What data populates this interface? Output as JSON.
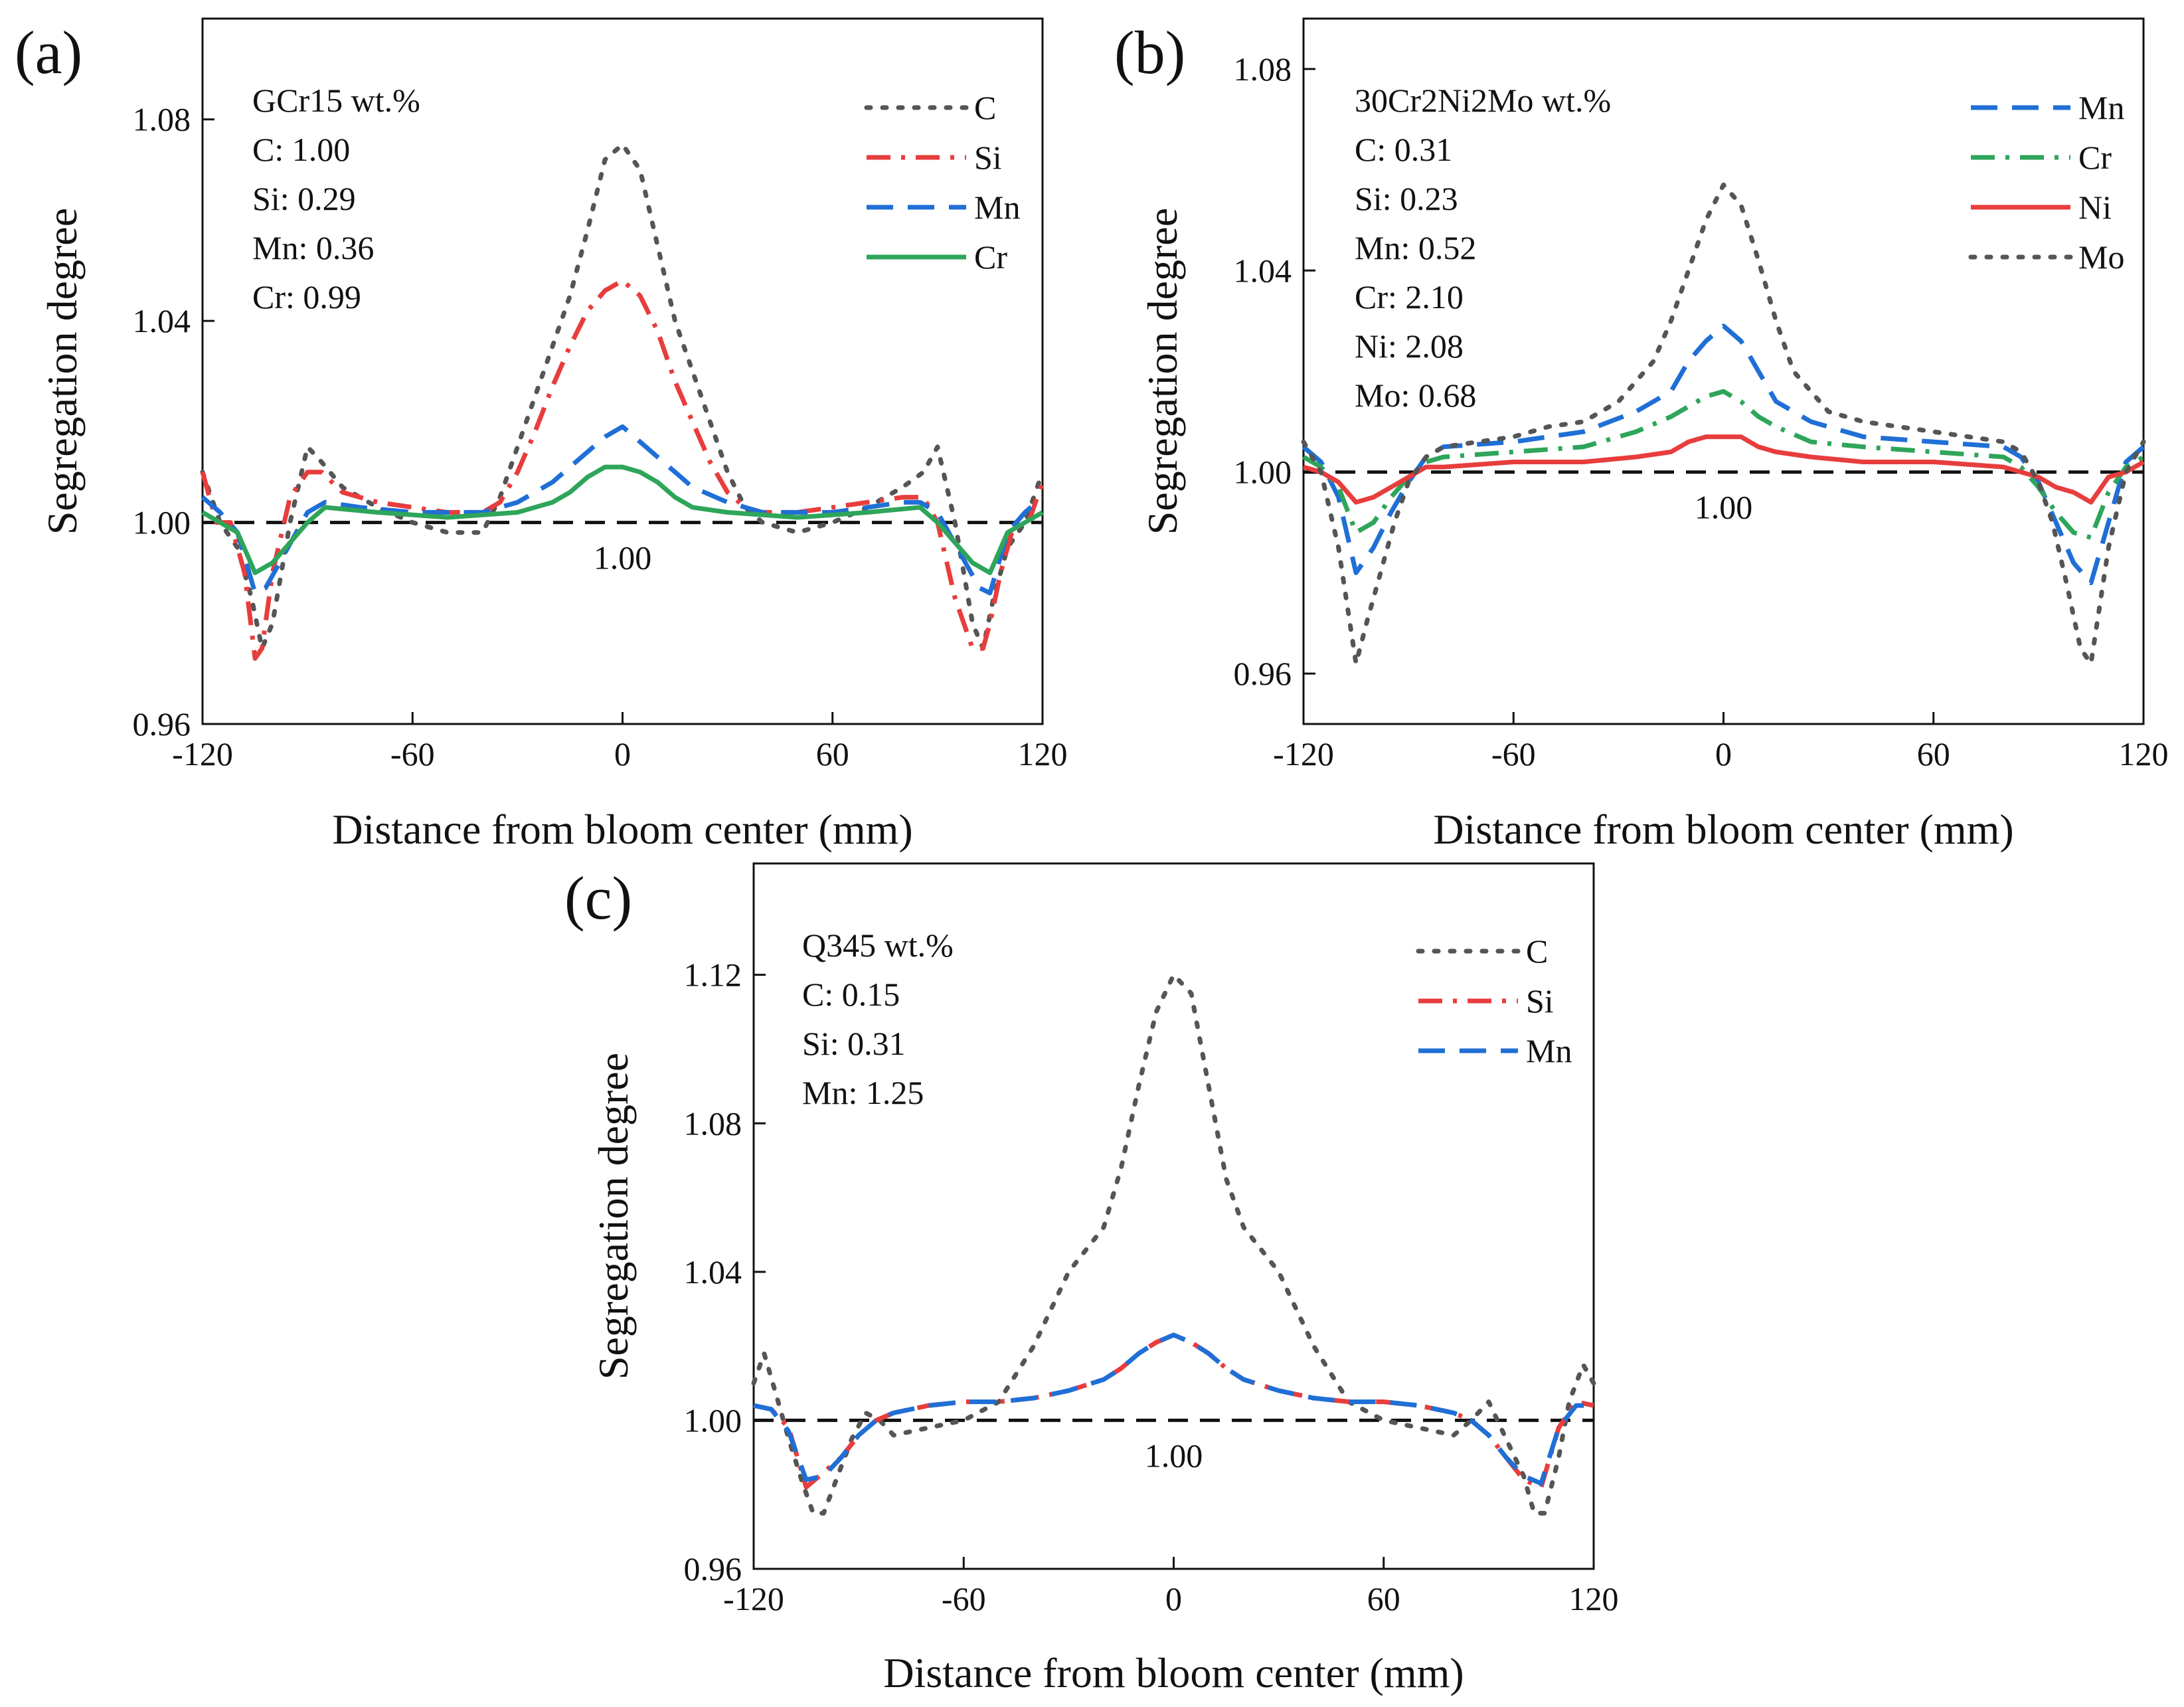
{
  "figure": {
    "panels": [
      "(a)",
      "(b)",
      "(c)"
    ]
  },
  "chart_data": [
    {
      "id": "a",
      "type": "line",
      "panel_label": "(a)",
      "xlabel": "Distance from bloom center (mm)",
      "ylabel": "Segregation degree",
      "xlim": [
        -120,
        120
      ],
      "ylim": [
        0.96,
        1.1
      ],
      "xticks": [
        "-120",
        "-60",
        "0",
        "60",
        "120"
      ],
      "yticks": [
        "0.96",
        "1.00",
        "1.04",
        "1.08"
      ],
      "ytick_values": [
        0.96,
        1.0,
        1.04,
        1.08
      ],
      "info_lines": [
        "GCr15 wt.%",
        "C: 1.00",
        "Si: 0.29",
        "Mn: 0.36",
        "Cr: 0.99"
      ],
      "reference": {
        "value": 1.0,
        "label": "1.00"
      },
      "legend_position": "top-right",
      "series": [
        {
          "name": "C",
          "color": "#555555",
          "style": "dot",
          "x": [
            -120,
            -115,
            -110,
            -106,
            -103,
            -100,
            -95,
            -90,
            -86,
            -80,
            -70,
            -60,
            -50,
            -40,
            -35,
            -30,
            -25,
            -20,
            -15,
            -10,
            -5,
            0,
            5,
            10,
            15,
            20,
            25,
            30,
            35,
            40,
            50,
            60,
            70,
            80,
            86,
            90,
            95,
            100,
            103,
            106,
            110,
            115,
            120
          ],
          "y": [
            1.01,
            1.0,
            0.995,
            0.985,
            0.975,
            0.98,
            1.0,
            1.015,
            1.012,
            1.007,
            1.003,
            1.0,
            0.998,
            0.998,
            1.005,
            1.015,
            1.025,
            1.035,
            1.045,
            1.058,
            1.072,
            1.075,
            1.07,
            1.055,
            1.04,
            1.03,
            1.02,
            1.01,
            1.003,
            1.0,
            0.998,
            1.0,
            1.003,
            1.007,
            1.01,
            1.015,
            1.0,
            0.98,
            0.975,
            0.985,
            0.995,
            1.0,
            1.01
          ]
        },
        {
          "name": "Si",
          "color": "#e83d3d",
          "style": "dashdot",
          "x": [
            -120,
            -116,
            -112,
            -108,
            -105,
            -103,
            -100,
            -95,
            -90,
            -86,
            -80,
            -70,
            -60,
            -50,
            -40,
            -35,
            -30,
            -25,
            -20,
            -15,
            -10,
            -5,
            0,
            5,
            10,
            15,
            20,
            25,
            30,
            35,
            40,
            50,
            60,
            70,
            80,
            86,
            90,
            95,
            100,
            103,
            105,
            108,
            112,
            116,
            120
          ],
          "y": [
            1.01,
            1.0,
            1.0,
            0.99,
            0.973,
            0.975,
            0.99,
            1.005,
            1.01,
            1.01,
            1.006,
            1.004,
            1.003,
            1.002,
            1.002,
            1.004,
            1.01,
            1.018,
            1.027,
            1.035,
            1.042,
            1.046,
            1.048,
            1.045,
            1.038,
            1.028,
            1.02,
            1.012,
            1.006,
            1.003,
            1.002,
            1.002,
            1.003,
            1.004,
            1.005,
            1.005,
            1.0,
            0.985,
            0.975,
            0.975,
            0.98,
            0.99,
            1.0,
            1.0,
            1.008
          ]
        },
        {
          "name": "Mn",
          "color": "#1f6fd6",
          "style": "dash",
          "x": [
            -120,
            -115,
            -110,
            -105,
            -102,
            -98,
            -94,
            -90,
            -85,
            -75,
            -60,
            -50,
            -40,
            -30,
            -20,
            -15,
            -10,
            -5,
            0,
            5,
            10,
            15,
            20,
            30,
            40,
            50,
            60,
            70,
            80,
            85,
            90,
            94,
            98,
            102,
            105,
            110,
            115,
            120
          ],
          "y": [
            1.005,
            1.002,
            0.998,
            0.986,
            0.987,
            0.992,
            0.997,
            1.002,
            1.004,
            1.003,
            1.002,
            1.002,
            1.002,
            1.004,
            1.008,
            1.011,
            1.014,
            1.017,
            1.019,
            1.016,
            1.013,
            1.01,
            1.007,
            1.004,
            1.002,
            1.002,
            1.002,
            1.003,
            1.004,
            1.004,
            1.002,
            0.997,
            0.992,
            0.987,
            0.986,
            0.998,
            1.002,
            1.005
          ]
        },
        {
          "name": "Cr",
          "color": "#2ea55a",
          "style": "solid",
          "x": [
            -120,
            -115,
            -110,
            -105,
            -100,
            -95,
            -90,
            -85,
            -70,
            -50,
            -30,
            -20,
            -15,
            -10,
            -5,
            0,
            5,
            10,
            15,
            20,
            30,
            50,
            70,
            85,
            90,
            95,
            100,
            105,
            110,
            115,
            120
          ],
          "y": [
            1.002,
            1.0,
            0.998,
            0.99,
            0.992,
            0.996,
            1.0,
            1.003,
            1.002,
            1.001,
            1.002,
            1.004,
            1.006,
            1.009,
            1.011,
            1.011,
            1.01,
            1.008,
            1.005,
            1.003,
            1.002,
            1.001,
            1.002,
            1.003,
            1.0,
            0.996,
            0.992,
            0.99,
            0.998,
            1.0,
            1.002
          ]
        }
      ]
    },
    {
      "id": "b",
      "type": "line",
      "panel_label": "(b)",
      "xlabel": "Distance from bloom center (mm)",
      "ylabel": "Segregation degree",
      "xlim": [
        -120,
        120
      ],
      "ylim": [
        0.95,
        1.09
      ],
      "xticks": [
        "-120",
        "-60",
        "0",
        "60",
        "120"
      ],
      "yticks": [
        "0.96",
        "1.00",
        "1.04",
        "1.08"
      ],
      "ytick_values": [
        0.96,
        1.0,
        1.04,
        1.08
      ],
      "info_lines": [
        "30Cr2Ni2Mo wt.%",
        "C: 0.31",
        "Si: 0.23",
        "Mn: 0.52",
        "Cr: 2.10",
        "Ni: 2.08",
        "Mo: 0.68"
      ],
      "reference": {
        "value": 1.0,
        "label": "1.00"
      },
      "legend_position": "top-right",
      "series": [
        {
          "name": "Mn",
          "color": "#1f6fd6",
          "style": "dash",
          "x": [
            -120,
            -115,
            -110,
            -105,
            -100,
            -95,
            -90,
            -85,
            -80,
            -60,
            -40,
            -25,
            -15,
            -10,
            -5,
            0,
            5,
            10,
            15,
            25,
            40,
            60,
            80,
            85,
            90,
            95,
            100,
            105,
            110,
            115,
            120
          ],
          "y": [
            1.005,
            1.002,
            0.995,
            0.98,
            0.985,
            0.992,
            0.998,
            1.003,
            1.005,
            1.006,
            1.008,
            1.012,
            1.016,
            1.022,
            1.026,
            1.029,
            1.026,
            1.02,
            1.014,
            1.01,
            1.007,
            1.006,
            1.005,
            1.003,
            0.998,
            0.99,
            0.982,
            0.978,
            0.99,
            1.002,
            1.005
          ]
        },
        {
          "name": "Cr",
          "color": "#2ea55a",
          "style": "dashdot",
          "x": [
            -120,
            -115,
            -110,
            -105,
            -100,
            -95,
            -90,
            -85,
            -80,
            -60,
            -40,
            -25,
            -15,
            -10,
            -5,
            0,
            5,
            10,
            15,
            25,
            40,
            60,
            80,
            85,
            90,
            95,
            100,
            105,
            110,
            115,
            120
          ],
          "y": [
            1.003,
            1.001,
            0.997,
            0.988,
            0.99,
            0.995,
            0.999,
            1.002,
            1.003,
            1.004,
            1.005,
            1.008,
            1.011,
            1.013,
            1.015,
            1.016,
            1.014,
            1.011,
            1.009,
            1.006,
            1.005,
            1.004,
            1.003,
            1.001,
            0.997,
            0.992,
            0.988,
            0.987,
            0.996,
            1.001,
            1.003
          ]
        },
        {
          "name": "Ni",
          "color": "#e83d3d",
          "style": "solid",
          "x": [
            -120,
            -115,
            -110,
            -105,
            -100,
            -95,
            -90,
            -85,
            -80,
            -60,
            -40,
            -25,
            -15,
            -10,
            -5,
            0,
            5,
            10,
            15,
            25,
            40,
            60,
            80,
            85,
            90,
            95,
            100,
            105,
            110,
            115,
            120
          ],
          "y": [
            1.001,
            1.0,
            0.998,
            0.994,
            0.995,
            0.997,
            0.999,
            1.001,
            1.001,
            1.002,
            1.002,
            1.003,
            1.004,
            1.006,
            1.007,
            1.007,
            1.007,
            1.005,
            1.004,
            1.003,
            1.002,
            1.002,
            1.001,
            1.0,
            0.999,
            0.997,
            0.996,
            0.994,
            0.999,
            1.0,
            1.002
          ]
        },
        {
          "name": "Mo",
          "color": "#555555",
          "style": "dot",
          "x": [
            -120,
            -115,
            -110,
            -105,
            -102,
            -98,
            -94,
            -90,
            -85,
            -80,
            -70,
            -60,
            -50,
            -40,
            -30,
            -20,
            -15,
            -10,
            -5,
            0,
            5,
            10,
            15,
            20,
            30,
            40,
            50,
            60,
            70,
            80,
            85,
            90,
            94,
            98,
            102,
            105,
            110,
            115,
            120
          ],
          "y": [
            1.006,
            1.0,
            0.985,
            0.962,
            0.97,
            0.98,
            0.99,
            0.998,
            1.003,
            1.005,
            1.006,
            1.007,
            1.009,
            1.01,
            1.014,
            1.022,
            1.03,
            1.04,
            1.05,
            1.057,
            1.053,
            1.042,
            1.03,
            1.02,
            1.012,
            1.01,
            1.009,
            1.008,
            1.007,
            1.006,
            1.004,
            0.998,
            0.99,
            0.978,
            0.965,
            0.962,
            0.985,
            1.0,
            1.006
          ]
        }
      ]
    },
    {
      "id": "c",
      "type": "line",
      "panel_label": "(c)",
      "xlabel": "Distance from bloom center (mm)",
      "ylabel": "Segregation degree",
      "xlim": [
        -120,
        120
      ],
      "ylim": [
        0.96,
        1.15
      ],
      "xticks": [
        "-120",
        "-60",
        "0",
        "60",
        "120"
      ],
      "yticks": [
        "0.96",
        "1.00",
        "1.04",
        "1.08",
        "1.12"
      ],
      "ytick_values": [
        0.96,
        1.0,
        1.04,
        1.08,
        1.12
      ],
      "info_lines": [
        "Q345 wt.%",
        "C: 0.15",
        "Si: 0.31",
        "Mn: 1.25"
      ],
      "reference": {
        "value": 1.0,
        "label": "1.00"
      },
      "legend_position": "top-right",
      "series": [
        {
          "name": "C",
          "color": "#555555",
          "style": "dot",
          "x": [
            -120,
            -117,
            -113,
            -110,
            -106,
            -103,
            -100,
            -96,
            -92,
            -88,
            -84,
            -80,
            -70,
            -60,
            -50,
            -40,
            -30,
            -20,
            -15,
            -10,
            -5,
            0,
            5,
            10,
            15,
            20,
            30,
            40,
            50,
            60,
            70,
            80,
            85,
            90,
            95,
            100,
            103,
            106,
            110,
            113,
            117,
            120
          ],
          "y": [
            1.01,
            1.018,
            1.005,
            0.995,
            0.983,
            0.975,
            0.975,
            0.985,
            0.995,
            1.002,
            1.0,
            0.996,
            0.998,
            1.0,
            1.005,
            1.02,
            1.04,
            1.052,
            1.068,
            1.09,
            1.11,
            1.12,
            1.115,
            1.09,
            1.065,
            1.052,
            1.04,
            1.02,
            1.005,
            1.0,
            0.998,
            0.996,
            1.0,
            1.005,
            0.995,
            0.985,
            0.975,
            0.975,
            0.99,
            1.005,
            1.015,
            1.01
          ]
        },
        {
          "name": "Si",
          "color": "#e83d3d",
          "style": "dashdot",
          "x": [
            -120,
            -115,
            -110,
            -105,
            -100,
            -95,
            -90,
            -85,
            -80,
            -70,
            -60,
            -50,
            -40,
            -30,
            -20,
            -15,
            -10,
            -5,
            0,
            5,
            10,
            15,
            20,
            30,
            40,
            50,
            60,
            70,
            80,
            85,
            90,
            95,
            100,
            105,
            110,
            115,
            120
          ],
          "y": [
            1.004,
            1.003,
            0.998,
            0.982,
            0.986,
            0.99,
            0.996,
            1.0,
            1.002,
            1.004,
            1.005,
            1.005,
            1.006,
            1.008,
            1.011,
            1.014,
            1.018,
            1.021,
            1.023,
            1.021,
            1.018,
            1.014,
            1.011,
            1.008,
            1.006,
            1.005,
            1.005,
            1.004,
            1.002,
            1.0,
            0.996,
            0.99,
            0.984,
            0.982,
            0.998,
            1.005,
            1.004
          ]
        },
        {
          "name": "Mn",
          "color": "#1f6fd6",
          "style": "dash",
          "x": [
            -120,
            -115,
            -110,
            -105,
            -100,
            -95,
            -90,
            -85,
            -80,
            -70,
            -60,
            -50,
            -40,
            -30,
            -20,
            -15,
            -10,
            -5,
            0,
            5,
            10,
            15,
            20,
            30,
            40,
            50,
            60,
            70,
            80,
            85,
            90,
            95,
            100,
            105,
            110,
            115,
            120
          ],
          "y": [
            1.004,
            1.003,
            0.997,
            0.984,
            0.985,
            0.99,
            0.996,
            1.0,
            1.002,
            1.004,
            1.005,
            1.005,
            1.006,
            1.008,
            1.011,
            1.014,
            1.018,
            1.021,
            1.023,
            1.021,
            1.018,
            1.014,
            1.011,
            1.008,
            1.006,
            1.005,
            1.005,
            1.004,
            1.002,
            1.0,
            0.996,
            0.99,
            0.985,
            0.983,
            0.998,
            1.004,
            1.004
          ]
        }
      ]
    }
  ]
}
